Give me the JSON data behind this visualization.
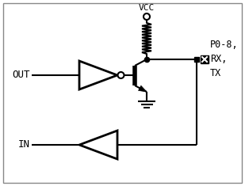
{
  "bg_color": "#ffffff",
  "border_color": "#888888",
  "line_color": "#000000",
  "line_width": 1.5,
  "fig_width": 3.09,
  "fig_height": 2.35,
  "vcc_label": "VCC",
  "out_label": "OUT",
  "in_label": "IN",
  "pin_label": "P0-8,\nRX,\nTX"
}
